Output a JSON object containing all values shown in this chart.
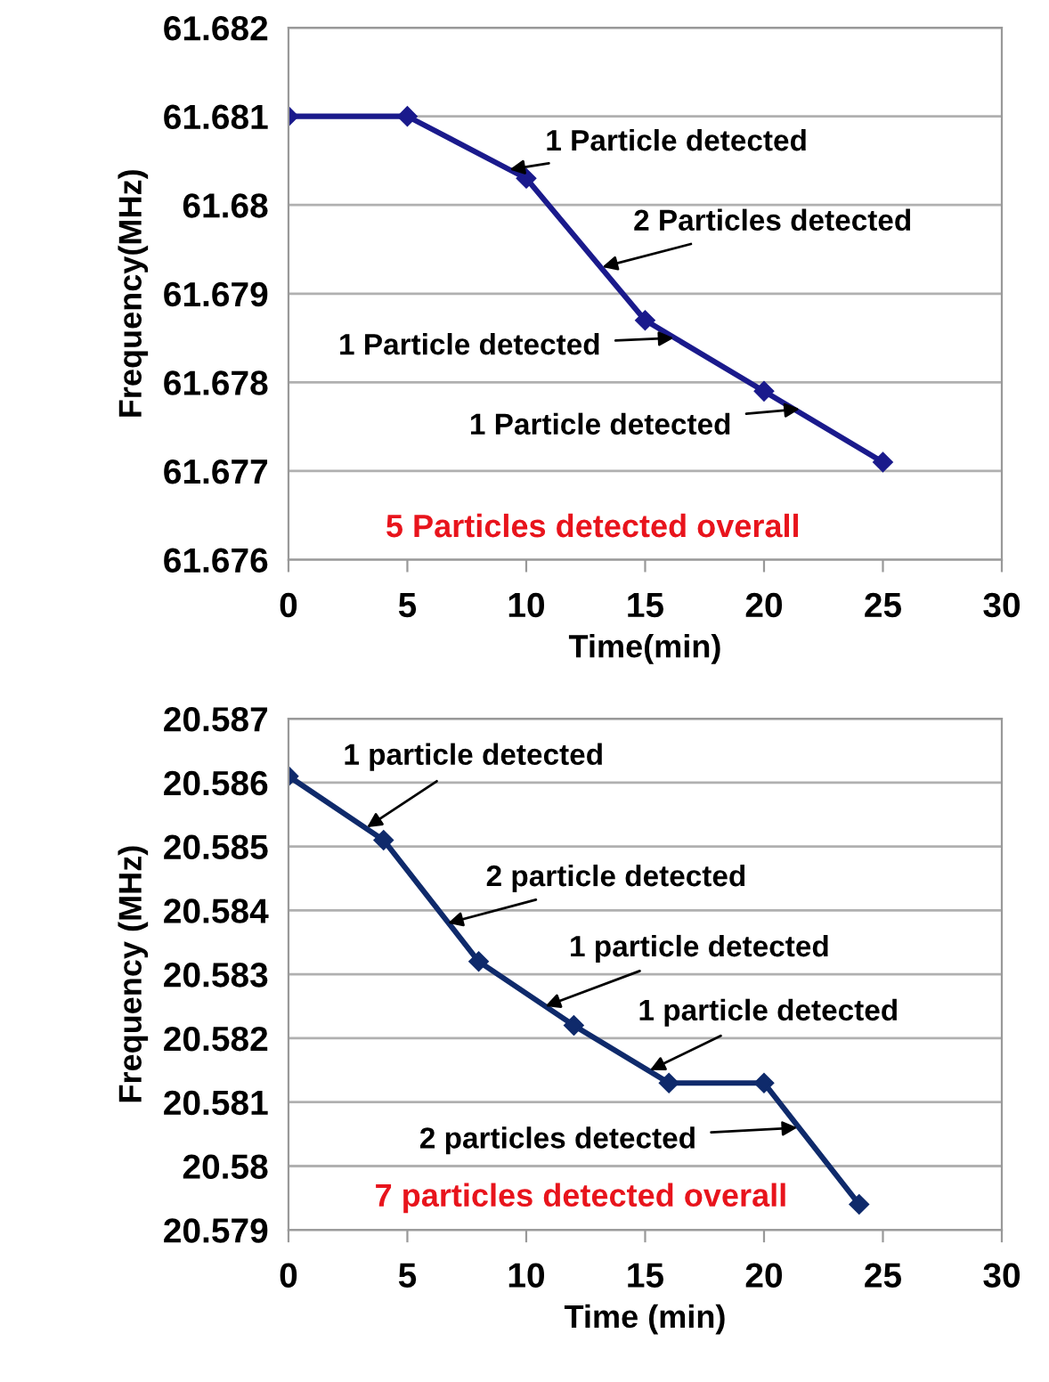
{
  "chart_data": [
    {
      "type": "line",
      "xlabel": "Time(min)",
      "ylabel": "Frequency(MHz)",
      "x": [
        0,
        5,
        10,
        15,
        20,
        25
      ],
      "series": [
        {
          "color": "#1a1a8c",
          "values": [
            61.681,
            61.681,
            61.6803,
            61.6787,
            61.6779,
            61.6771
          ]
        }
      ],
      "xlim": [
        0,
        30
      ],
      "xticks": [
        0,
        5,
        10,
        15,
        20,
        25,
        30
      ],
      "ylim": [
        61.676,
        61.682
      ],
      "yticks": [
        61.676,
        61.677,
        61.678,
        61.679,
        61.68,
        61.681,
        61.682
      ],
      "grid": "y",
      "marker": "diamond",
      "line_style": "solid",
      "legend": false,
      "annotations": [
        {
          "text": "1 Particle detected",
          "x": 9.3,
          "y": 61.6804
        },
        {
          "text": "2 Particles detected",
          "x": 13.2,
          "y": 61.6793
        },
        {
          "text": "1 Particle detected",
          "x": 16.2,
          "y": 61.6785
        },
        {
          "text": "1 Particle detected",
          "x": 21.5,
          "y": 61.6777
        },
        "5 Particles detected overall"
      ]
    },
    {
      "type": "line",
      "xlabel": "Time (min)",
      "ylabel": "Frequency (MHz)",
      "x": [
        0,
        4,
        8,
        12,
        16,
        20,
        24
      ],
      "series": [
        {
          "color": "#0f2a6b",
          "values": [
            20.5861,
            20.5851,
            20.5832,
            20.5822,
            20.5813,
            20.5813,
            20.5794
          ]
        }
      ],
      "xlim": [
        0,
        30
      ],
      "xticks": [
        0,
        5,
        10,
        15,
        20,
        25,
        30
      ],
      "ylim": [
        20.579,
        20.587
      ],
      "yticks": [
        20.579,
        20.58,
        20.581,
        20.582,
        20.583,
        20.584,
        20.585,
        20.586,
        20.587
      ],
      "grid": "y",
      "marker": "diamond",
      "line_style": "solid",
      "legend": false,
      "annotations": [
        {
          "text": "1 particle detected",
          "x": 3.3,
          "y": 20.5853
        },
        {
          "text": "2 particle detected",
          "x": 6.7,
          "y": 20.5838
        },
        {
          "text": "1 particle detected",
          "x": 10.8,
          "y": 20.5825
        },
        {
          "text": "1 particle detected",
          "x": 15.2,
          "y": 20.5815
        },
        {
          "text": "2 particles detected",
          "x": 21.4,
          "y": 20.5806
        },
        "7 particles detected overall"
      ]
    }
  ]
}
